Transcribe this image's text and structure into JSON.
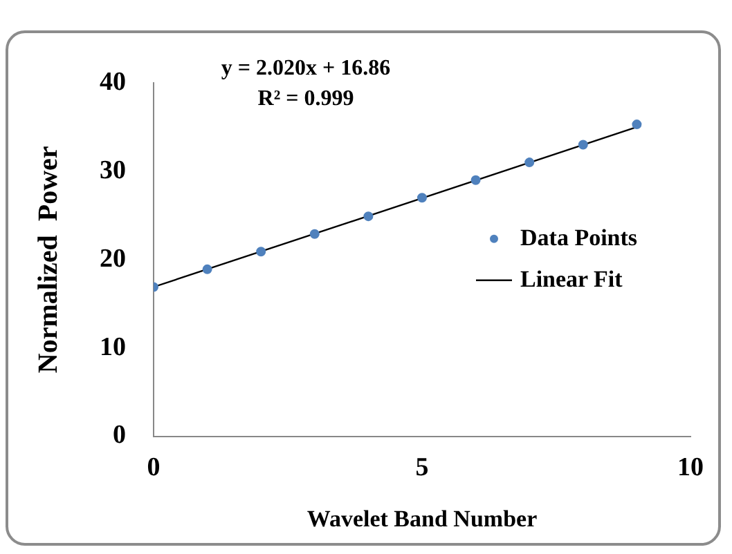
{
  "chart_data": {
    "type": "scatter",
    "xlabel": "Wavelet Band Number",
    "ylabel": "Normalized  Power",
    "annotations": [
      "y = 2.020x + 16.86",
      "R² = 0.999"
    ],
    "xlim": [
      0,
      10
    ],
    "xticks": [
      0,
      5,
      10
    ],
    "ylim": [
      0,
      40
    ],
    "yticks": [
      0,
      10,
      20,
      30,
      40
    ],
    "grid": false,
    "legend": "right",
    "series": [
      {
        "name": "Data Points",
        "type": "scatter",
        "marker": "circle",
        "color": "#4f81bd",
        "x": [
          0,
          1,
          2,
          3,
          4,
          5,
          6,
          7,
          8,
          9
        ],
        "values": [
          16.9,
          18.9,
          20.9,
          22.9,
          24.9,
          27.0,
          29.0,
          31.0,
          33.0,
          35.3
        ]
      },
      {
        "name": "Linear Fit",
        "type": "line",
        "color": "#000000",
        "marker": "none",
        "line_style": "solid",
        "x": [
          0,
          9
        ],
        "values": [
          16.9,
          35.0
        ]
      }
    ]
  }
}
